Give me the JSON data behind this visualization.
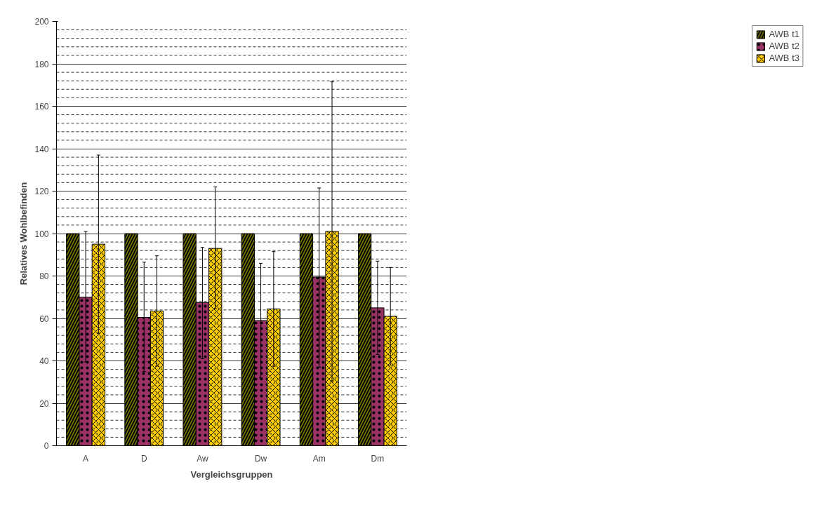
{
  "chart_data": {
    "type": "bar",
    "xlabel": "Vergleichsgruppen",
    "ylabel": "Relatives Wohlbefinden",
    "categories": [
      "A",
      "D",
      "Aw",
      "Dw",
      "Am",
      "Dm"
    ],
    "series": [
      {
        "name": "AWB t1",
        "color": "#808000",
        "values": [
          100,
          100,
          100,
          100,
          100,
          100
        ]
      },
      {
        "name": "AWB t2",
        "color": "#993366",
        "values": [
          70,
          60.5,
          67.5,
          59,
          79.5,
          65
        ],
        "errors": [
          [
            39.5,
            101
          ],
          [
            35,
            86.5
          ],
          [
            41,
            93.5
          ],
          [
            32,
            86
          ],
          [
            37,
            121.5
          ],
          [
            43,
            87
          ]
        ]
      },
      {
        "name": "AWB t3",
        "color": "#ffcc00",
        "values": [
          95,
          63.5,
          93,
          64.5,
          101,
          61
        ],
        "errors": [
          [
            53,
            137
          ],
          [
            37.5,
            89.5
          ],
          [
            64.5,
            122
          ],
          [
            37.5,
            91.5
          ],
          [
            30.5,
            171.5
          ],
          [
            38,
            84
          ]
        ]
      }
    ],
    "ylim": [
      0,
      200
    ],
    "yticks": [
      0,
      20,
      40,
      60,
      80,
      100,
      120,
      140,
      160,
      180,
      200
    ],
    "grid": "y",
    "legend": "right"
  }
}
